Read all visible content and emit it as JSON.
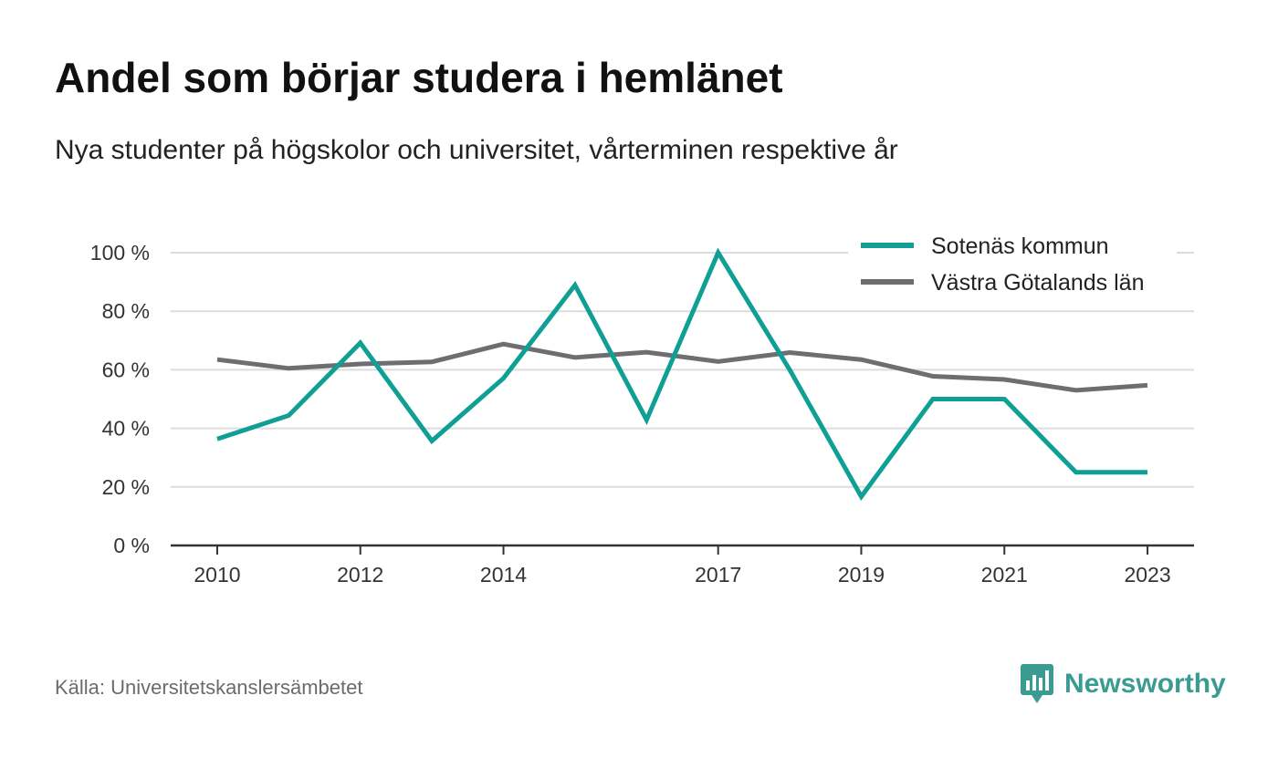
{
  "title": "Andel som börjar studera i hemlänet",
  "subtitle": "Nya studenter på högskolor och universitet, vårterminen respektive år",
  "source": "Källa: Universitetskanslersämbetet",
  "brand": {
    "name": "Newsworthy",
    "icon": "newsworthy-logo-icon",
    "color": "#3a9b93"
  },
  "chart_data": {
    "type": "line",
    "x": [
      2010,
      2011,
      2012,
      2013,
      2014,
      2015,
      2016,
      2017,
      2018,
      2019,
      2020,
      2021,
      2022,
      2023
    ],
    "x_tick_labels": [
      "2010",
      "2012",
      "2014",
      "2017",
      "2019",
      "2021",
      "2023"
    ],
    "x_ticks": [
      2010,
      2012,
      2014,
      2017,
      2019,
      2021,
      2023
    ],
    "xlim": [
      2009.35,
      2023.65
    ],
    "y_ticks": [
      0,
      20,
      40,
      60,
      80,
      100
    ],
    "y_tick_labels": [
      "0 %",
      "20 %",
      "40 %",
      "60 %",
      "80 %",
      "100 %"
    ],
    "ylim": [
      0,
      100
    ],
    "grid": true,
    "legend_position": "top-right",
    "series": [
      {
        "name": "Sotenäs kommun",
        "color": "#0f9f95",
        "values": [
          36.4,
          44.4,
          69.2,
          35.7,
          57.1,
          88.9,
          42.9,
          100,
          60.0,
          16.7,
          50.0,
          50.0,
          25.0,
          25.0
        ]
      },
      {
        "name": "Västra Götalands län",
        "color": "#6e6e72",
        "values": [
          63.5,
          60.5,
          62.0,
          62.7,
          68.8,
          64.2,
          66.0,
          62.8,
          65.9,
          63.5,
          57.8,
          56.7,
          53.0,
          54.7
        ]
      }
    ]
  }
}
